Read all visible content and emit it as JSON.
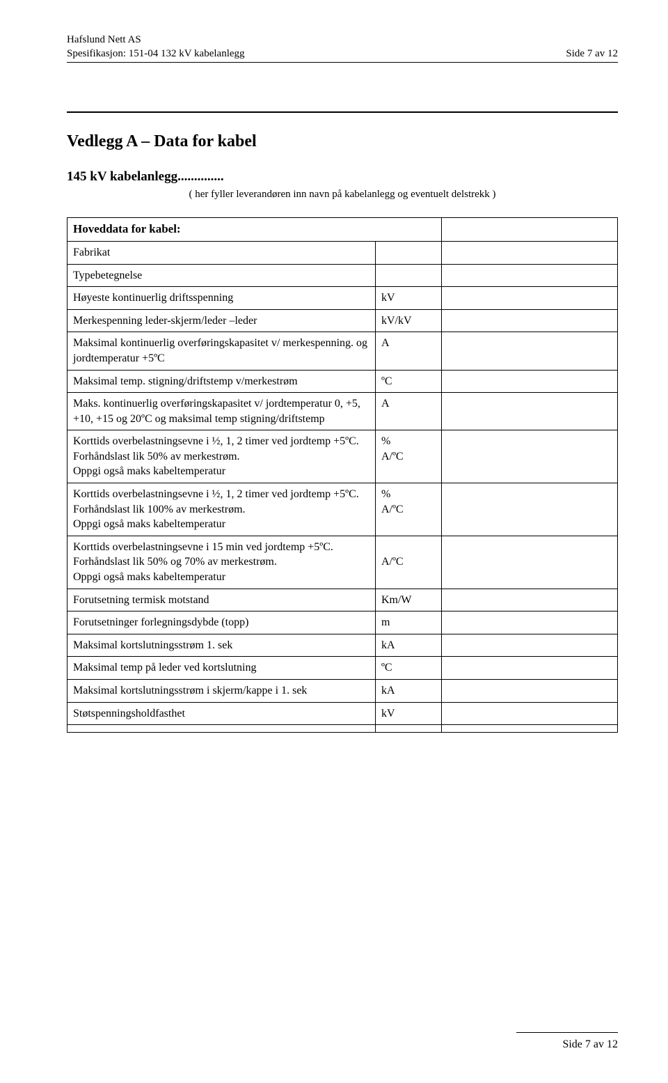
{
  "header": {
    "company": "Hafslund Nett AS",
    "spec_line": "Spesifikasjon: 151-04 132 kV kabelanlegg",
    "page_label": "Side 7 av 12"
  },
  "title": "Vedlegg A – Data for kabel",
  "subtitle": "145 kV kabelanlegg",
  "dots": "..............",
  "note": "( her fyller leverandøren inn navn på kabelanlegg og eventuelt delstrekk )",
  "table": {
    "header": "Hoveddata for kabel:",
    "rows": [
      {
        "label": "Fabrikat",
        "unit": "",
        "value": ""
      },
      {
        "label": "Typebetegnelse",
        "unit": "",
        "value": ""
      },
      {
        "label": "Høyeste kontinuerlig driftsspenning",
        "unit": "kV",
        "value": ""
      },
      {
        "label": "Merkespenning leder-skjerm/leder –leder",
        "unit": "kV/kV",
        "value": ""
      },
      {
        "label": "Maksimal kontinuerlig overføringskapasitet v/ merkespenning. og jordtemperatur +5ºC",
        "unit": "A",
        "value": ""
      },
      {
        "label": "Maksimal temp. stigning/driftstemp v/merkestrøm",
        "unit": "ºC",
        "value": ""
      },
      {
        "label": "Maks. kontinuerlig overføringskapasitet v/ jordtemperatur 0, +5, +10, +15 og 20ºC og maksimal temp stigning/driftstemp",
        "unit": "A",
        "value": ""
      },
      {
        "label": "Korttids overbelastningsevne i ½, 1, 2 timer ved jordtemp +5ºC. Forhåndslast lik 50% av merkestrøm.\nOppgi også maks kabeltemperatur",
        "unit": "%\nA/ºC",
        "value": ""
      },
      {
        "label": "Korttids overbelastningsevne i ½, 1, 2 timer ved jordtemp +5ºC. Forhåndslast lik 100% av merkestrøm.\nOppgi også maks kabeltemperatur",
        "unit": "%\nA/ºC",
        "value": ""
      },
      {
        "label": "Korttids overbelastningsevne i 15 min ved jordtemp +5ºC. Forhåndslast lik 50% og 70% av merkestrøm.\nOppgi også maks kabeltemperatur",
        "unit": "\nA/ºC",
        "value": ""
      },
      {
        "label": "Forutsetning termisk motstand",
        "unit": "Km/W",
        "value": ""
      },
      {
        "label": "Forutsetninger forlegningsdybde (topp)",
        "unit": "m",
        "value": ""
      },
      {
        "label": "Maksimal kortslutningsstrøm 1. sek",
        "unit": "kA",
        "value": ""
      },
      {
        "label": "Maksimal temp på leder ved kortslutning",
        "unit": "ºC",
        "value": ""
      },
      {
        "label": "Maksimal kortslutningsstrøm i skjerm/kappe i 1. sek",
        "unit": "kA",
        "value": ""
      },
      {
        "label": "Støtspenningsholdfasthet",
        "unit": "kV",
        "value": ""
      },
      {
        "label": "",
        "unit": "",
        "value": ""
      }
    ]
  },
  "footer": {
    "page_label": "Side 7 av 12"
  }
}
